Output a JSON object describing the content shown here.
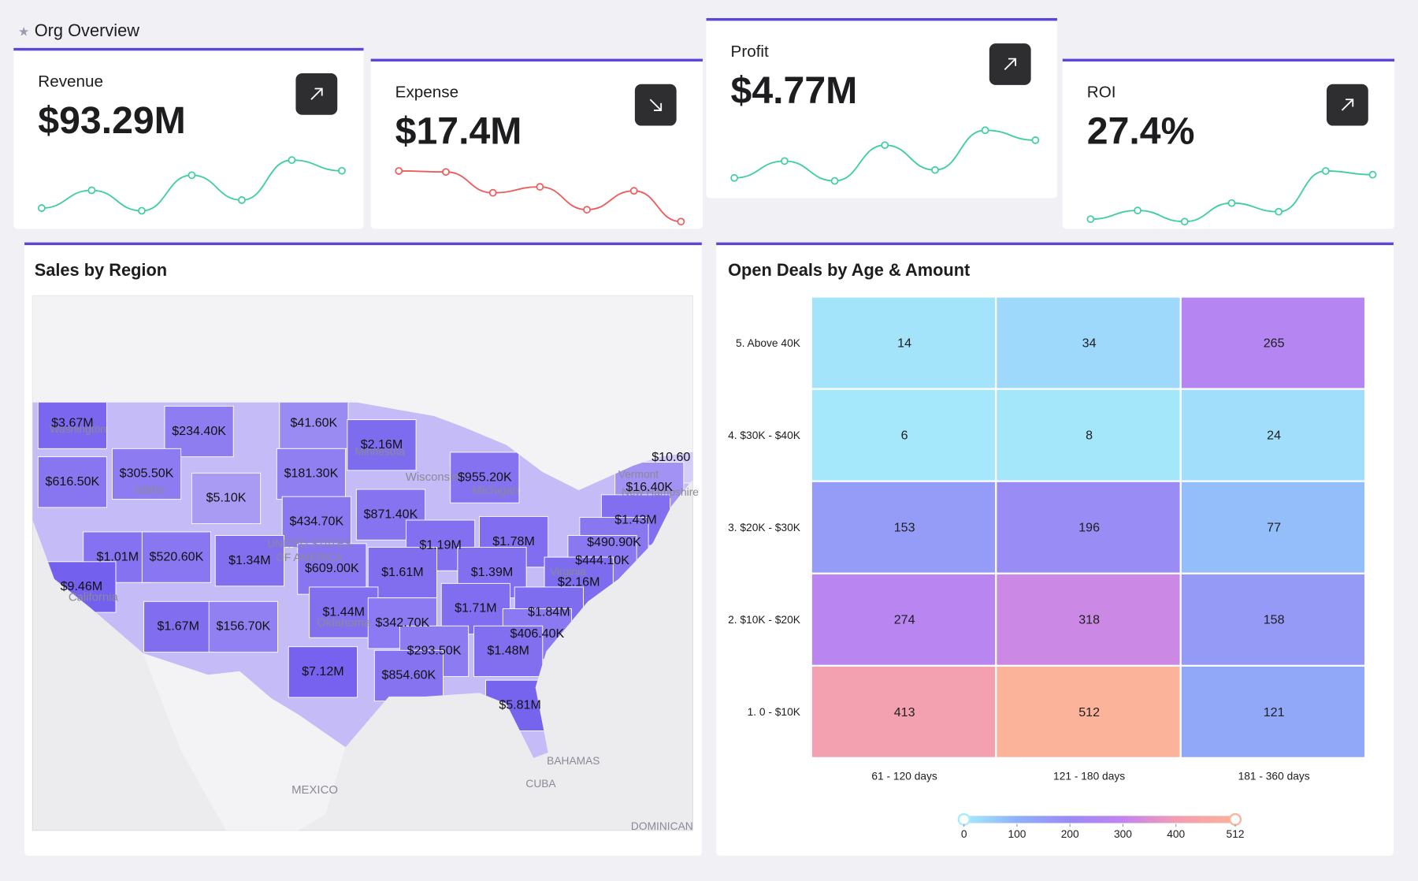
{
  "header": {
    "title": "Org Overview"
  },
  "kpis": [
    {
      "title": "Revenue",
      "value": "$93.29M",
      "direction": "up",
      "color": "#3ecf9a",
      "trend": [
        19,
        39,
        16,
        56,
        28,
        73,
        61
      ]
    },
    {
      "title": "Expense",
      "value": "$17.4M",
      "direction": "down",
      "color": "#ef5b5b",
      "trend": [
        64,
        63,
        42,
        48,
        25,
        44,
        13
      ]
    },
    {
      "title": "Profit",
      "value": "$4.77M",
      "direction": "up",
      "color": "#3ecf9a",
      "trend": [
        25,
        42,
        22,
        58,
        33,
        73,
        63
      ]
    },
    {
      "title": "ROI",
      "value": "27.4%",
      "direction": "up",
      "color": "#3ecf9a",
      "trend": [
        22,
        29,
        20,
        35,
        28,
        61,
        58
      ]
    }
  ],
  "map": {
    "title": "Sales by Region",
    "color_low": "#d4ccf9",
    "color_high": "#7460ee",
    "values": [
      3670000,
      234400,
      41600,
      2160000,
      616500,
      305500,
      181300,
      955200,
      10.6,
      16400,
      5100,
      434700,
      871400,
      1430000,
      490900,
      1190000,
      1780000,
      1010000,
      520600,
      1340000,
      609000,
      1610000,
      1390000,
      444100,
      2160000,
      9460000,
      1710000,
      1840000,
      1440000,
      342700,
      406400,
      1670000,
      156700,
      293500,
      1480000,
      7120000,
      854600,
      5810000
    ],
    "value_labels": [
      "$3.67M",
      "$234.40K",
      "$41.60K",
      "$2.16M",
      "$616.50K",
      "$305.50K",
      "$181.30K",
      "$955.20K",
      "$10.60",
      "$16.40K",
      "$5.10K",
      "$434.70K",
      "$871.40K",
      "$1.43M",
      "$490.90K",
      "$1.19M",
      "$1.78M",
      "$1.01M",
      "$520.60K",
      "$1.34M",
      "$609.00K",
      "$1.61M",
      "$1.39M",
      "$444.10K",
      "$2.16M",
      "$9.46M",
      "$1.71M",
      "$1.84M",
      "$1.44M",
      "$342.70K",
      "$406.40K",
      "$1.67M",
      "$156.70K",
      "$293.50K",
      "$1.48M",
      "$7.12M",
      "$854.60K",
      "$5.81M"
    ],
    "place_labels": [
      "Washington",
      "Idaho",
      "California",
      "Michigan",
      "Wisconsin",
      "Minnesota",
      "Oklahoma",
      "Vermont",
      "New Hampshire",
      "Virginia",
      "UNITED STATES",
      "OF AMERICA",
      "MEXICO",
      "BAHAMAS",
      "CUBA",
      "DOMINICAN"
    ]
  },
  "heatmap": {
    "title": "Open Deals by Age & Amount",
    "rows": [
      "5. Above 40K",
      "4. $30K - $40K",
      "3. $20K - $30K",
      "2. $10K - $20K",
      "1. 0 - $10K"
    ],
    "columns": [
      "61 - 120 days",
      "121 - 180 days",
      "181 - 360 days"
    ],
    "values": [
      [
        14,
        34,
        265
      ],
      [
        6,
        8,
        24
      ],
      [
        153,
        196,
        77
      ],
      [
        274,
        318,
        158
      ],
      [
        413,
        512,
        121
      ]
    ],
    "scale_lim": [
      0,
      512
    ],
    "scale_ticks": [
      0,
      100,
      200,
      300,
      400,
      512
    ],
    "scale_colors": [
      "#a6ecfb",
      "#8fb0f9",
      "#9a8af5",
      "#c383ef",
      "#f29db3",
      "#fbb39a"
    ]
  }
}
